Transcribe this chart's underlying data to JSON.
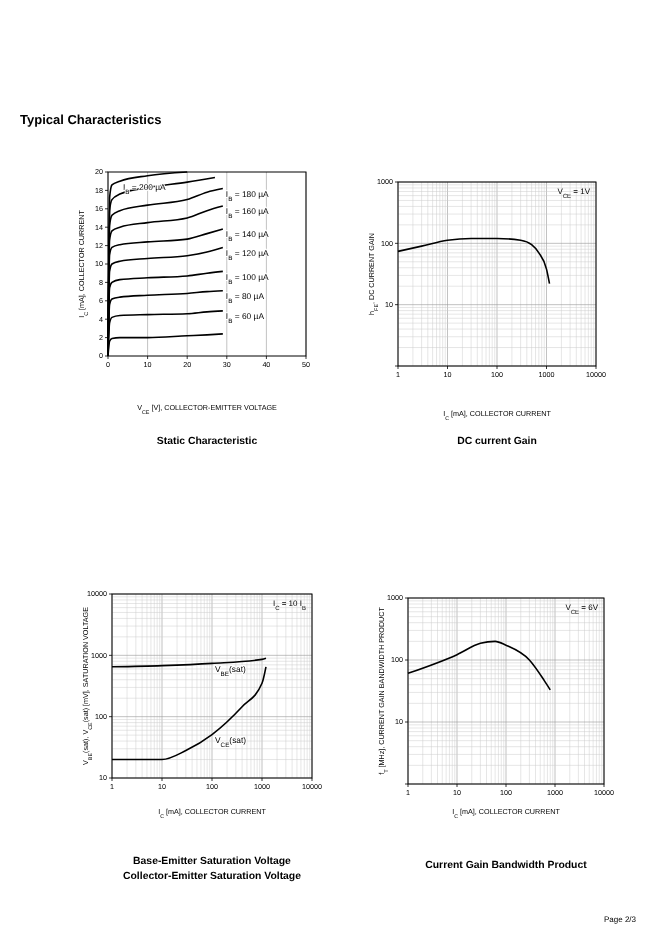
{
  "chart_data": [
    {
      "type": "line",
      "title": "Static Characteristic",
      "xlabel": "V$_{CE}$ [V], COLLECTOR-EMITTER VOLTAGE",
      "ylabel": "I$_{C}$ [mA], COLLECTOR CURRENT",
      "xlim": [
        0,
        50
      ],
      "xticks": [
        0,
        10,
        20,
        30,
        40,
        50
      ],
      "ylim": [
        0,
        20
      ],
      "yticks": [
        0,
        2,
        4,
        6,
        8,
        10,
        12,
        14,
        16,
        18,
        20
      ],
      "grid": "x",
      "line_style": "solid",
      "series": [
        {
          "color": "#000000",
          "x": [
            0,
            0.4,
            1,
            3,
            10,
            20,
            25,
            29
          ],
          "values": [
            0,
            1.6,
            1.9,
            2.0,
            2.0,
            2.2,
            2.3,
            2.4
          ]
        },
        {
          "color": "#000000",
          "x": [
            0,
            0.4,
            1,
            3,
            10,
            20,
            25,
            29
          ],
          "values": [
            0,
            3.6,
            4.2,
            4.4,
            4.5,
            4.6,
            4.8,
            4.9
          ]
        },
        {
          "color": "#000000",
          "x": [
            0,
            0.4,
            1,
            3,
            10,
            20,
            25,
            29
          ],
          "values": [
            0,
            5.6,
            6.2,
            6.4,
            6.6,
            6.8,
            7.0,
            7.1
          ]
        },
        {
          "color": "#000000",
          "x": [
            0,
            0.4,
            1,
            3,
            10,
            20,
            25,
            29
          ],
          "values": [
            0,
            7.4,
            8.0,
            8.3,
            8.5,
            8.7,
            9.0,
            9.2
          ]
        },
        {
          "color": "#000000",
          "x": [
            0,
            0.4,
            1,
            3,
            10,
            20,
            25,
            29
          ],
          "values": [
            0,
            9.2,
            10.0,
            10.3,
            10.6,
            10.9,
            11.3,
            11.8
          ]
        },
        {
          "color": "#000000",
          "x": [
            0,
            0.4,
            1,
            3,
            10,
            20,
            25,
            29
          ],
          "values": [
            0,
            11.0,
            11.8,
            12.1,
            12.4,
            12.7,
            13.3,
            13.8
          ]
        },
        {
          "color": "#000000",
          "x": [
            0,
            0.4,
            1,
            3,
            10,
            20,
            25,
            29
          ],
          "values": [
            0,
            12.6,
            13.6,
            14.0,
            14.5,
            15.0,
            15.8,
            16.3
          ]
        },
        {
          "color": "#000000",
          "x": [
            0,
            0.4,
            1,
            3,
            10,
            20,
            25,
            29
          ],
          "values": [
            0,
            14.2,
            15.3,
            15.8,
            16.4,
            17.0,
            17.8,
            18.2
          ]
        },
        {
          "color": "#000000",
          "x": [
            0,
            0.4,
            1,
            3,
            10,
            20,
            27
          ],
          "values": [
            0,
            15.8,
            17.0,
            17.6,
            18.3,
            18.9,
            19.4
          ]
        },
        {
          "color": "#000000",
          "x": [
            0,
            0.4,
            1,
            3,
            10,
            20
          ],
          "values": [
            0,
            17.2,
            18.6,
            19.0,
            19.6,
            20
          ]
        }
      ],
      "annotations": [
        "Typical Characteristics",
        {
          "text": "I$_{B}$ = 200 µA",
          "x": 3,
          "y": 19.0
        },
        {
          "text": "I$_{B}$ = 180 µA",
          "x": 29,
          "y": 18.2
        },
        {
          "text": "I$_{B}$ = 160 µA",
          "x": 29,
          "y": 16.3
        },
        {
          "text": "I$_{B}$ = 140 µA",
          "x": 29,
          "y": 13.8
        },
        {
          "text": "I$_{B}$ = 120 µA",
          "x": 29,
          "y": 11.8
        },
        {
          "text": "I$_{B}$ = 100 µA",
          "x": 29,
          "y": 9.2
        },
        {
          "text": "I$_{B}$ = 80 µA",
          "x": 29,
          "y": 7.1
        },
        {
          "text": "I$_{B}$ = 60 µA",
          "x": 29,
          "y": 4.9
        }
      ]
    },
    {
      "type": "line",
      "title": "DC current Gain",
      "xlabel": "I$_{C}$ [mA], COLLECTOR CURRENT",
      "ylabel": "h$_{FE}$, DC CURRENT GAIN",
      "log": "xy",
      "xlim": [
        1,
        10000
      ],
      "xticks": [
        1,
        10,
        100,
        1000,
        10000
      ],
      "ylim": [
        1,
        1000
      ],
      "yticks": [
        {
          "value": 1,
          "label": null
        },
        10,
        100,
        1000
      ],
      "grid": true,
      "line_style": "solid",
      "series": [
        {
          "color": "#000000",
          "x": [
            1,
            3,
            10,
            30,
            100,
            300,
            500,
            700,
            1000,
            1150
          ],
          "values": [
            74,
            90,
            112,
            120,
            120,
            112,
            95,
            70,
            38,
            22
          ]
        }
      ],
      "annotations": [
        "V$_{CE}$ = 1V"
      ]
    },
    {
      "type": "line",
      "title": "Base-Emitter Saturation Voltage",
      "subtitle": "Collector-Emitter Saturation Voltage",
      "xlabel": "I$_{C}$ [mA], COLLECTOR CURRENT",
      "ylabel": "V$_{BE}$(sat), V$_{CE}$(sat) [mV], SATURATION VOLTAGE",
      "log": "xy",
      "xlim": [
        1,
        10000
      ],
      "xticks": [
        1,
        10,
        100,
        1000,
        10000
      ],
      "ylim": [
        10,
        10000
      ],
      "yticks": [
        10,
        100,
        1000,
        10000
      ],
      "grid": true,
      "line_style": "solid",
      "series": [
        {
          "color": "#000000",
          "x": [
            1,
            10,
            100,
            1000,
            1200
          ],
          "values": [
            650,
            680,
            740,
            860,
            900
          ]
        },
        {
          "color": "#000000",
          "x": [
            1,
            10,
            30,
            100,
            400,
            1000,
            1200
          ],
          "values": [
            20,
            20,
            28,
            51,
            145,
            350,
            650
          ]
        }
      ],
      "annotations": [
        "I$_{C}$ = 10 I$_{B}$",
        {
          "text": "V$_{BE}$(sat)",
          "x": 100,
          "y": 740
        },
        {
          "text": "V$_{CE}$(sat)",
          "x": 100,
          "y": 51
        }
      ]
    },
    {
      "type": "line",
      "title": "Current Gain Bandwidth Product",
      "xlabel": "I$_{C}$ [mA], COLLECTOR CURRENT",
      "ylabel": "f$_{T}$ [MHz], CURRENT GAIN BANDWIDTH PRODUCT",
      "log": "xy",
      "xlim": [
        1,
        10000
      ],
      "xticks": [
        1,
        10,
        100,
        1000,
        10000
      ],
      "ylim": [
        1,
        1000
      ],
      "yticks": [
        {
          "value": 1,
          "label": null
        },
        10,
        100,
        1000
      ],
      "grid": true,
      "line_style": "solid",
      "series": [
        {
          "color": "#000000",
          "x": [
            1,
            10,
            30,
            60,
            100,
            300,
            600,
            800
          ],
          "values": [
            61,
            122,
            186,
            200,
            173,
            100,
            47,
            33
          ]
        }
      ],
      "annotations": [
        "V$_{CE}$ = 6V",
        "Page 2/3"
      ]
    }
  ]
}
